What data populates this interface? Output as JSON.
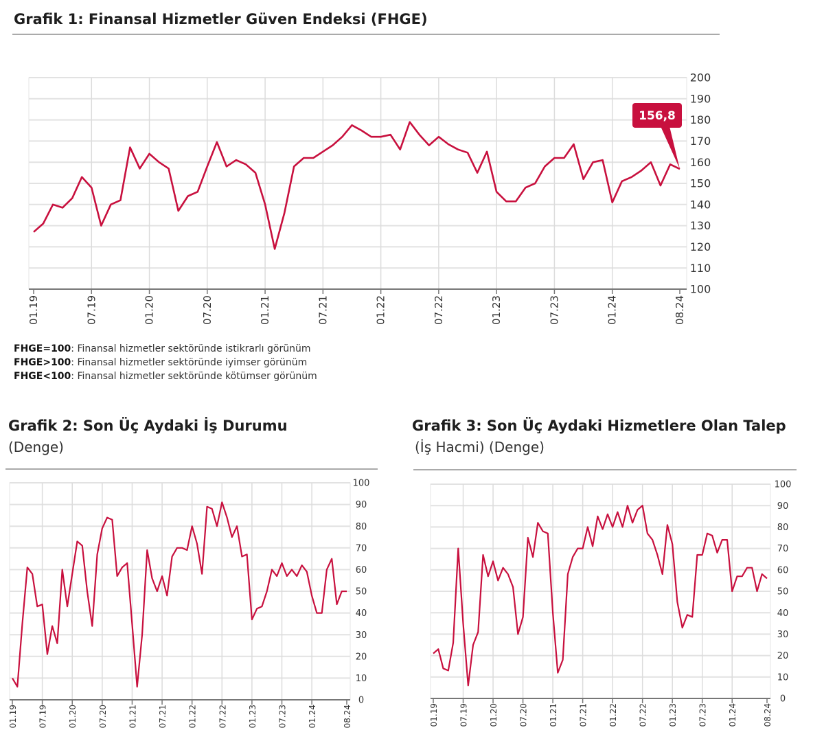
{
  "chart_data": [
    {
      "type": "line",
      "title": "Grafik 1: Finansal Hizmetler Güven Endeksi (FHGE)",
      "x_tick_labels": [
        "01.19",
        "07.19",
        "01.20",
        "07.20",
        "01.21",
        "07.21",
        "01.22",
        "07.22",
        "01.23",
        "07.23",
        "01.24",
        "08.24"
      ],
      "x_start": "01.19",
      "x_end": "08.24",
      "frequency": "monthly",
      "ylim": [
        100,
        200
      ],
      "y_ticks": [
        100,
        110,
        120,
        130,
        140,
        150,
        160,
        170,
        180,
        190,
        200
      ],
      "y_axis_side": "right",
      "grid": true,
      "line_color": "#c8103e",
      "annotation": {
        "text": "156,8",
        "point": "08.24",
        "color": "#c8103e"
      },
      "values": [
        127,
        131,
        140,
        138.5,
        143,
        153,
        148,
        130,
        140,
        142,
        167,
        157,
        164,
        160,
        157,
        137,
        144,
        146,
        158,
        169.5,
        158,
        161,
        159,
        155,
        140,
        119,
        136,
        158,
        162,
        162,
        165,
        168,
        172,
        177.5,
        175,
        172,
        172,
        173,
        166,
        179,
        173,
        168,
        172,
        168.5,
        166,
        164.5,
        155,
        165,
        146,
        141.5,
        141.5,
        148,
        150,
        158,
        162,
        162,
        168.5,
        152,
        160,
        161,
        141,
        151,
        153,
        156,
        160,
        149,
        159,
        156.8
      ]
    },
    {
      "type": "line",
      "title": "Grafik 2: Son Üç Aydaki İş Durumu",
      "subtitle": "(Denge)",
      "x_tick_labels": [
        "01.19",
        "07.19",
        "01.20",
        "07.20",
        "01.21",
        "07.21",
        "01.22",
        "07.22",
        "01.23",
        "07.23",
        "01.24",
        "08.24"
      ],
      "x_start": "01.19",
      "x_end": "08.24",
      "frequency": "monthly",
      "ylim": [
        0,
        100
      ],
      "y_ticks": [
        0,
        10,
        20,
        30,
        40,
        50,
        60,
        70,
        80,
        90,
        100
      ],
      "y_axis_side": "right",
      "grid": true,
      "line_color": "#c8103e",
      "values": [
        10,
        6,
        35,
        61,
        58,
        43,
        44,
        21,
        34,
        26,
        60,
        43,
        58,
        73,
        71,
        50,
        34,
        67,
        79,
        84,
        83,
        57,
        61,
        63,
        35,
        6,
        30,
        69,
        56,
        50,
        57,
        48,
        66,
        70,
        70,
        69,
        80,
        72,
        58,
        89,
        88,
        80,
        91,
        84,
        75,
        80,
        66,
        67,
        37,
        42,
        43,
        50,
        60,
        57,
        63,
        57,
        60,
        57,
        62,
        59,
        48,
        40,
        40,
        60,
        65,
        44,
        50,
        50
      ]
    },
    {
      "type": "line",
      "title": "Grafik 3: Son Üç Aydaki Hizmetlere Olan Talep",
      "subtitle": "(İş Hacmi) (Denge)",
      "x_tick_labels": [
        "01.19",
        "07.19",
        "01.20",
        "07.20",
        "01.21",
        "07.21",
        "01.22",
        "07.22",
        "01.23",
        "07.23",
        "01.24",
        "08.24"
      ],
      "x_start": "01.19",
      "x_end": "08.24",
      "frequency": "monthly",
      "ylim": [
        0,
        100
      ],
      "y_ticks": [
        0,
        10,
        20,
        30,
        40,
        50,
        60,
        70,
        80,
        90,
        100
      ],
      "y_axis_side": "right",
      "grid": true,
      "line_color": "#c8103e",
      "values": [
        21,
        23,
        14,
        13,
        26,
        70,
        35,
        6,
        25,
        31,
        67,
        57,
        64,
        55,
        61,
        58,
        52,
        30,
        38,
        75,
        66,
        82,
        78,
        77,
        40,
        12,
        18,
        58,
        66,
        70,
        70,
        80,
        71,
        85,
        79,
        86,
        80,
        87,
        80,
        90,
        82,
        88,
        90,
        77,
        74,
        67,
        58,
        81,
        72,
        45,
        33,
        39,
        38,
        67,
        67,
        77,
        76,
        68,
        74,
        74,
        50,
        57,
        57,
        61,
        61,
        50,
        58,
        56
      ]
    }
  ],
  "notes": [
    {
      "key": "FHGE=100",
      "text": ": Finansal hizmetler sektöründe istikrarlı görünüm"
    },
    {
      "key": "FHGE>100",
      "text": ": Finansal hizmetler sektöründe iyimser görünüm"
    },
    {
      "key": "FHGE<100",
      "text": ": Finansal hizmetler sektöründe kötümser görünüm"
    }
  ]
}
